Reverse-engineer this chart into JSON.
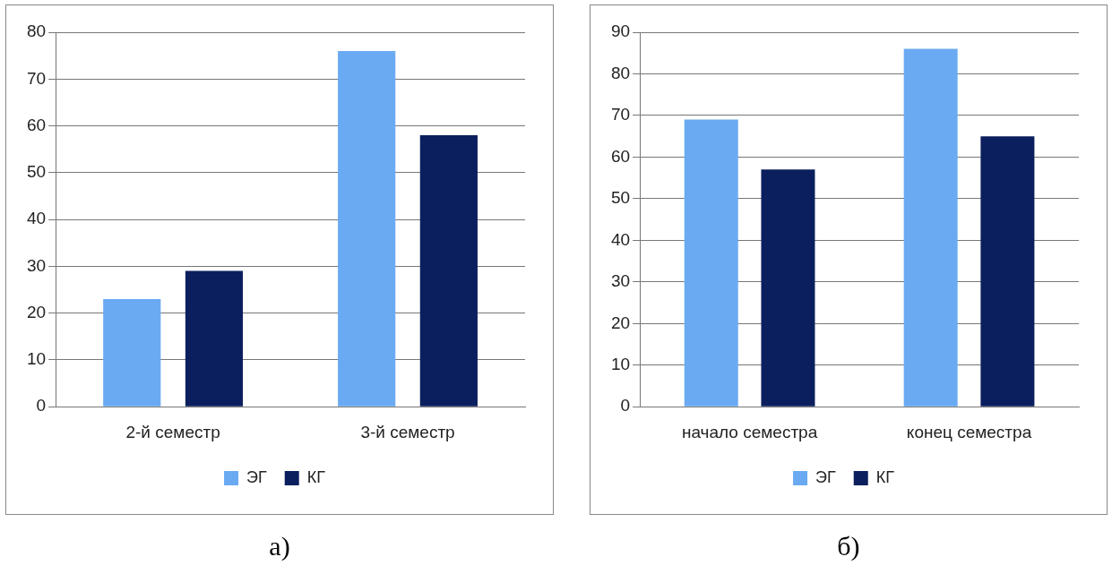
{
  "chart_data": [
    {
      "type": "bar",
      "categories": [
        "2-й семестр",
        "3-й семестр"
      ],
      "series": [
        {
          "name": "ЭГ",
          "color": "#6aaaf2",
          "values": [
            23,
            76
          ]
        },
        {
          "name": "КГ",
          "color": "#0b1f5e",
          "values": [
            29,
            58
          ]
        }
      ],
      "ylim": [
        0,
        80
      ],
      "yticks": [
        0,
        10,
        20,
        30,
        40,
        50,
        60,
        70,
        80
      ],
      "grid": "y",
      "legend": "bottom",
      "annotations": [
        "а)"
      ]
    },
    {
      "type": "bar",
      "categories": [
        "начало семестра",
        "конец семестра"
      ],
      "series": [
        {
          "name": "ЭГ",
          "color": "#6aaaf2",
          "values": [
            69,
            86
          ]
        },
        {
          "name": "КГ",
          "color": "#0b1f5e",
          "values": [
            57,
            65
          ]
        }
      ],
      "ylim": [
        0,
        90
      ],
      "yticks": [
        0,
        10,
        20,
        30,
        40,
        50,
        60,
        70,
        80,
        90
      ],
      "grid": "y",
      "legend": "bottom",
      "annotations": [
        "б)"
      ]
    }
  ]
}
